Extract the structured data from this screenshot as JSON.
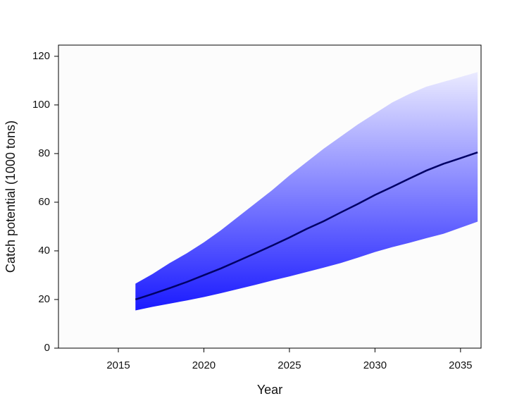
{
  "chart_data": {
    "type": "band-line",
    "x_label": "Year",
    "y_label": "Catch potential (1000 tons)",
    "x": [
      2016,
      2017,
      2018,
      2019,
      2020,
      2021,
      2022,
      2023,
      2024,
      2025,
      2026,
      2027,
      2028,
      2029,
      2030,
      2031,
      2032,
      2033,
      2034,
      2035,
      2036
    ],
    "values": [
      20,
      22.3,
      24.7,
      27.2,
      30,
      32.8,
      35.9,
      39,
      42.2,
      45.5,
      49,
      52.2,
      55.8,
      59.3,
      63,
      66.3,
      69.7,
      73,
      75.8,
      78.1,
      80.5
    ],
    "upper": [
      26.5,
      30.5,
      35,
      39,
      43.5,
      48.5,
      54,
      59.5,
      65,
      71,
      76.5,
      82,
      87,
      92,
      96.5,
      101,
      104.5,
      107.5,
      109.5,
      111.5,
      113.5
    ],
    "lower": [
      15.5,
      17,
      18.3,
      19.6,
      21,
      22.6,
      24.3,
      26,
      27.8,
      29.5,
      31.3,
      33.1,
      35,
      37.2,
      39.5,
      41.5,
      43.3,
      45.2,
      47,
      49.5,
      52
    ],
    "color": "#000066",
    "band_colors": [
      "#ececff",
      "#1a1aff"
    ],
    "xlim": [
      2011.5,
      2036.2
    ],
    "xticks": [
      2015,
      2020,
      2025,
      2030,
      2035
    ],
    "ylim": [
      0,
      124.6
    ],
    "yticks": [
      0,
      20,
      40,
      60,
      80,
      100,
      120
    ]
  }
}
